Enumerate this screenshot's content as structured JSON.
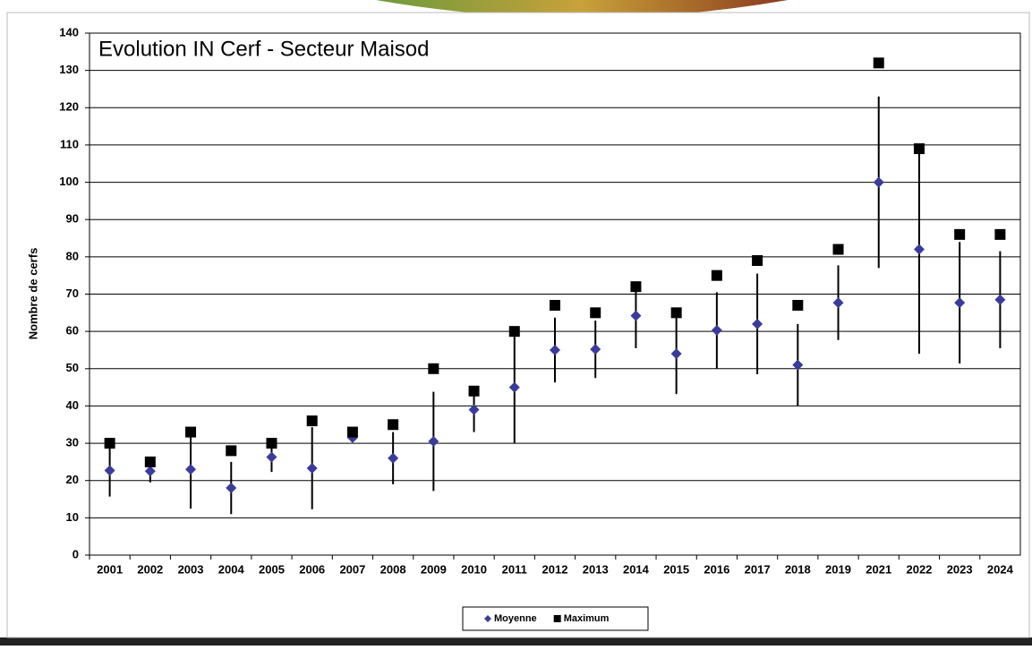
{
  "chart_data": {
    "type": "scatter",
    "title": "Evolution IN Cerf - Secteur Maisod",
    "y_label": "Nombre de cerfs",
    "categories": [
      "2001",
      "2002",
      "2003",
      "2004",
      "2005",
      "2006",
      "2007",
      "2008",
      "2009",
      "2010",
      "2011",
      "2012",
      "2013",
      "2014",
      "2015",
      "2016",
      "2017",
      "2018",
      "2019",
      "2021",
      "2022",
      "2023",
      "2024"
    ],
    "series": [
      {
        "name": "Moyenne",
        "color": "#3b3b9b",
        "marker": "diamond",
        "values": [
          22.7,
          22.5,
          23,
          18,
          26.3,
          23.3,
          31.5,
          26,
          30.5,
          39,
          45,
          55,
          55.2,
          64.2,
          54,
          60.3,
          62,
          51,
          67.7,
          100,
          82,
          67.7,
          68.5
        ],
        "errors": [
          7,
          3,
          10.5,
          7,
          4,
          11,
          1,
          7,
          13.3,
          6,
          15,
          8.7,
          7.7,
          8.7,
          10.8,
          10.2,
          13.5,
          11,
          10,
          23,
          28,
          16.3,
          13
        ]
      },
      {
        "name": "Maximum",
        "color": "#000000",
        "marker": "square",
        "values": [
          30,
          25,
          33,
          28,
          30,
          36,
          33,
          35,
          50,
          44,
          60,
          67,
          65,
          72,
          65,
          75,
          79,
          67,
          82,
          132,
          109,
          86,
          86
        ]
      }
    ],
    "ylim": [
      0,
      140
    ],
    "yticks": [
      0,
      10,
      20,
      30,
      40,
      50,
      60,
      70,
      80,
      90,
      100,
      110,
      120,
      130,
      140
    ],
    "grid": true,
    "legend": "bottom"
  }
}
